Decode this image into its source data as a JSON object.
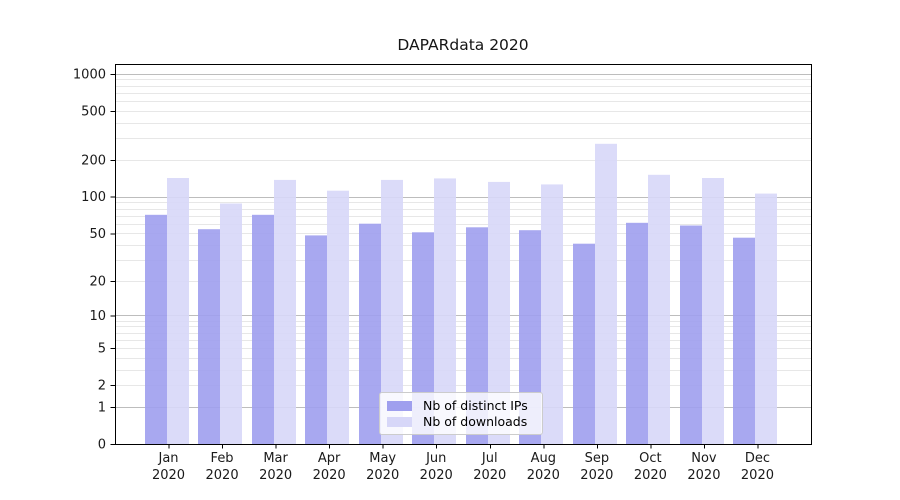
{
  "chart_data": {
    "type": "bar",
    "title": "DAPARdata 2020",
    "y_scale": "log1p",
    "ylim": [
      0,
      1200
    ],
    "y_ticks": [
      0,
      1,
      2,
      5,
      10,
      20,
      50,
      100,
      200,
      500,
      1000
    ],
    "grid": {
      "major_color": "#bdbdbd",
      "minor_color": "#e7e7e7",
      "major_at": [
        1,
        10,
        100,
        1000
      ]
    },
    "categories": [
      "Jan",
      "Feb",
      "Mar",
      "Apr",
      "May",
      "Jun",
      "Jul",
      "Aug",
      "Sep",
      "Oct",
      "Nov",
      "Dec"
    ],
    "category_year": "2020",
    "series": [
      {
        "name": "Nb of distinct IPs",
        "color": "#9f9fee",
        "values": [
          71,
          54,
          71,
          48,
          60,
          51,
          56,
          53,
          41,
          61,
          58,
          46
        ]
      },
      {
        "name": "Nb of downloads",
        "color": "#d7d7f8",
        "values": [
          142,
          88,
          137,
          112,
          137,
          141,
          132,
          126,
          270,
          151,
          142,
          106
        ]
      }
    ],
    "legend_position": "lower center"
  }
}
